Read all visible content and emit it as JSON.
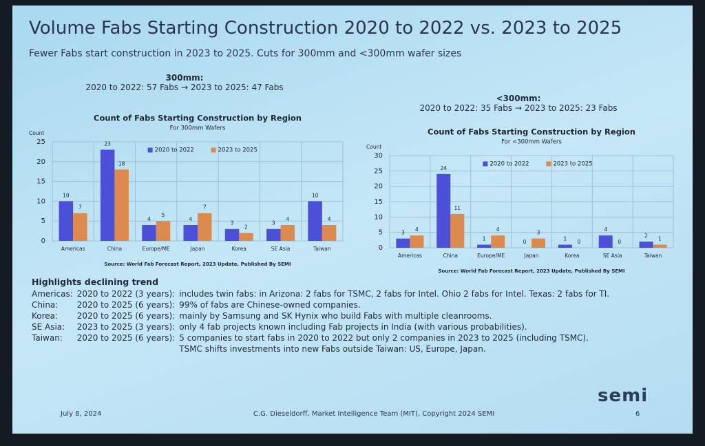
{
  "slide": {
    "title": "Volume Fabs Starting Construction 2020 to 2022 vs. 2023 to 2025",
    "subtitle": "Fewer Fabs start construction in 2023 to 2025. Cuts for 300mm and <300mm wafer sizes",
    "sections": [
      {
        "heading": "300mm:",
        "summary": "2020 to 2022: 57 Fabs → 2023 to 2025: 47 Fabs"
      },
      {
        "heading": "<300mm:",
        "summary": "2020 to 2022: 35 Fabs → 2023 to 2025: 23 Fabs"
      }
    ],
    "highlights": {
      "title": "Highlights declining trend",
      "rows": [
        [
          "Americas:",
          "2020 to 2022 (3 years):",
          "includes twin fabs: in Arizona: 2 fabs for TSMC, 2 fabs for Intel. Ohio 2 fabs for Intel. Texas: 2 fabs for TI."
        ],
        [
          "China:",
          "2020 to 2025 (6 years):",
          "99% of fabs are Chinese-owned companies."
        ],
        [
          "Korea:",
          "2020 to 2025 (6 years):",
          "mainly by Samsung and SK Hynix who build Fabs with multiple cleanrooms."
        ],
        [
          "SE Asia:",
          "2023 to 2025 (3 years):",
          "only 4 fab projects known including Fab projects in India (with various probabilities)."
        ],
        [
          "Taiwan:",
          "2020 to 2025 (6 years):",
          "5 companies to start fabs in 2020 to 2022 but only 2 companies in 2023 to 2025 (including TSMC)."
        ]
      ],
      "note": "TSMC shifts investments into new Fabs outside Taiwan: US, Europe, Japan."
    },
    "footer": {
      "date": "July 8, 2024",
      "credit": "C.G. Dieseldorff, Market Intelligence Team (MIT), Copyright 2024 SEMI",
      "page": "6",
      "logo": "semi"
    }
  },
  "chart_data": [
    {
      "type": "bar",
      "title": "Count of Fabs Starting Construction by Region",
      "subtitle": "For 300mm Wafers",
      "y_label": "Count",
      "source": "Source: World Fab Forecast Report, 2023 Update, Published By SEMI",
      "categories": [
        "Americas",
        "China",
        "Europe/ME",
        "Japan",
        "Korea",
        "SE Asia",
        "Taiwan"
      ],
      "series": [
        {
          "name": "2020 to 2022",
          "color": "#4c50d8",
          "values": [
            10,
            23,
            4,
            4,
            3,
            3,
            10
          ]
        },
        {
          "name": "2023 to 2025",
          "color": "#dc8a4e",
          "values": [
            7,
            18,
            5,
            7,
            2,
            4,
            4
          ]
        }
      ],
      "ylim": [
        0,
        25
      ],
      "yticks": [
        0,
        5,
        10,
        15,
        20,
        25
      ],
      "grid": true
    },
    {
      "type": "bar",
      "title": "Count of Fabs Starting Construction by Region",
      "subtitle": "For <300mm Wafers",
      "y_label": "Count",
      "source": "Source: World Fab Forecast Report, 2023 Update, Published By SEMI",
      "categories": [
        "Americas",
        "China",
        "Europe/ME",
        "Japan",
        "Korea",
        "SE Asia",
        "Taiwan"
      ],
      "series": [
        {
          "name": "2020 to 2022",
          "color": "#4c50d8",
          "values": [
            3,
            24,
            1,
            0,
            1,
            4,
            2
          ]
        },
        {
          "name": "2023 to 2025",
          "color": "#dc8a4e",
          "values": [
            4,
            11,
            4,
            3,
            0,
            0,
            1
          ]
        }
      ],
      "ylim": [
        0,
        30
      ],
      "yticks": [
        0,
        5,
        10,
        15,
        20,
        25,
        30
      ],
      "grid": true
    }
  ]
}
